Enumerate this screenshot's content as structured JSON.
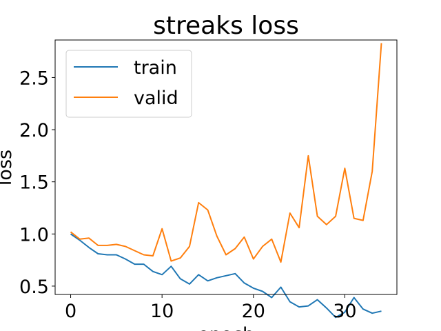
{
  "chart_data": {
    "type": "line",
    "title": "streaks loss",
    "xlabel": "epoch",
    "ylabel": "loss",
    "xlim": [
      -1.7,
      35.7
    ],
    "ylim": [
      0.42,
      2.86
    ],
    "x_ticks": [
      0,
      10,
      20,
      30
    ],
    "x_tick_labels": [
      "0",
      "10",
      "20",
      "30"
    ],
    "y_ticks": [
      0.5,
      1.0,
      1.5,
      2.0,
      2.5
    ],
    "y_tick_labels": [
      "0.5",
      "1.0",
      "1.5",
      "2.0",
      "2.5"
    ],
    "grid": false,
    "legend_position": "top-left",
    "x": [
      0,
      1,
      2,
      3,
      4,
      5,
      6,
      7,
      8,
      9,
      10,
      11,
      12,
      13,
      14,
      15,
      16,
      17,
      18,
      19,
      20,
      21,
      22,
      23,
      24,
      25,
      26,
      27,
      28,
      29,
      30,
      31,
      32,
      33,
      34
    ],
    "series": [
      {
        "name": "train",
        "color": "#1f77b4",
        "values": [
          1.0,
          0.94,
          0.87,
          0.81,
          0.8,
          0.8,
          0.76,
          0.71,
          0.71,
          0.64,
          0.61,
          0.69,
          0.57,
          0.52,
          0.61,
          0.55,
          0.58,
          0.6,
          0.62,
          0.53,
          0.48,
          0.45,
          0.39,
          0.49,
          0.35,
          0.3,
          0.31,
          0.37,
          0.29,
          0.2,
          0.25,
          0.39,
          0.28,
          0.24,
          0.26
        ]
      },
      {
        "name": "valid",
        "color": "#ff7f0e",
        "values": [
          1.02,
          0.95,
          0.96,
          0.89,
          0.89,
          0.9,
          0.88,
          0.84,
          0.8,
          0.79,
          1.05,
          0.74,
          0.77,
          0.88,
          1.3,
          1.23,
          0.98,
          0.8,
          0.86,
          0.97,
          0.76,
          0.88,
          0.95,
          0.73,
          1.2,
          1.06,
          1.75,
          1.17,
          1.09,
          1.17,
          1.63,
          1.15,
          1.13,
          1.6,
          2.83
        ]
      }
    ]
  }
}
